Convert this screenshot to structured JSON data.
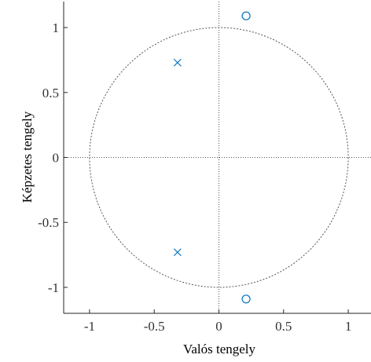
{
  "chart_data": {
    "type": "scatter",
    "title": "",
    "xlabel": "Valós tengely",
    "ylabel": "Képzetes tengely",
    "xlim": [
      -1.2,
      1.2
    ],
    "ylim": [
      -1.2,
      1.2
    ],
    "xticks": [
      -1,
      -0.5,
      0,
      0.5,
      1
    ],
    "yticks": [
      -1,
      -0.5,
      0,
      0.5,
      1
    ],
    "xtick_labels": [
      "-1",
      "-0.5",
      "0",
      "0.5",
      "1"
    ],
    "ytick_labels": [
      "-1",
      "-0.5",
      "0",
      "0.5",
      "1"
    ],
    "unit_circle": true,
    "grid": false,
    "series": [
      {
        "marker": "circle",
        "x": [
          0.21,
          0.21
        ],
        "y": [
          1.09,
          -1.09
        ]
      },
      {
        "marker": "cross",
        "x": [
          -0.32,
          -0.32
        ],
        "y": [
          0.73,
          -0.73
        ]
      }
    ],
    "colors": {
      "marker": "#0072bd",
      "axes": "#262626",
      "reference": "#555555"
    }
  }
}
